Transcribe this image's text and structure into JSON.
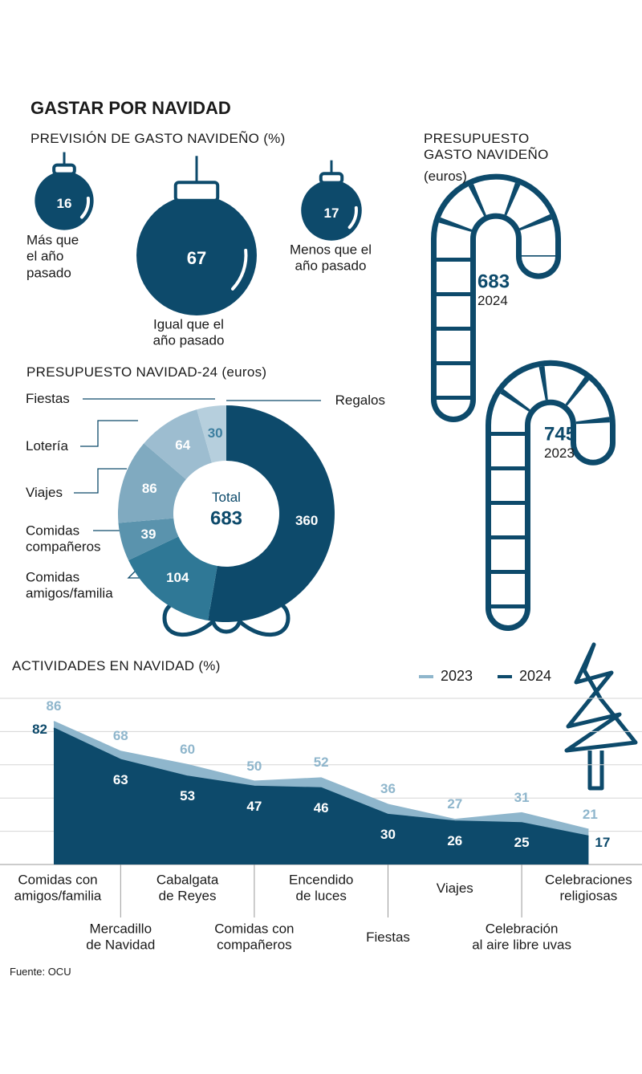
{
  "title": "GASTAR POR NAVIDAD",
  "source": "Fuente: OCU",
  "chart_data": [
    {
      "type": "bubble",
      "title": "PREVISIÓN DE GASTO NAVIDEÑO (%)",
      "categories": [
        "Más que\nel año\npasado",
        "Igual que el\naño pasado",
        "Menos que el\naño pasado"
      ],
      "values": [
        16,
        67,
        17
      ],
      "color": "#0d4a6b"
    },
    {
      "type": "pictogram",
      "title": "PRESUPUESTO\nGASTO NAVIDEÑO",
      "subtitle": "(euros)",
      "categories": [
        "2024",
        "2023"
      ],
      "values": [
        683,
        745
      ],
      "color": "#0d4a6b"
    },
    {
      "type": "pie",
      "title": "PRESUPUESTO NAVIDAD-24 (euros)",
      "categories": [
        "Regalos",
        "Comidas\namigos/familia",
        "Comidas\ncompañeros",
        "Viajes",
        "Lotería",
        "Fiestas"
      ],
      "values": [
        360,
        104,
        39,
        86,
        64,
        30
      ],
      "colors": [
        "#0d4a6b",
        "#2f7896",
        "#5a93ad",
        "#80aac0",
        "#9dbdd0",
        "#b6cfdd"
      ],
      "total_label": "Total",
      "total": 683
    },
    {
      "type": "area",
      "title": "ACTIVIDADES EN NAVIDAD (%)",
      "categories": [
        "Comidas con\namigos/familia",
        "Mercadillo\nde Navidad",
        "Cabalgata\nde Reyes",
        "Comidas con\ncompañeros",
        "Encendido\nde luces",
        "Fiestas",
        "Viajes",
        "Celebración\nal aire libre uvas",
        "Celebraciones\nreligiosas"
      ],
      "series": [
        {
          "name": "2023",
          "color": "#8fb6cc",
          "values": [
            86,
            68,
            60,
            50,
            52,
            36,
            27,
            31,
            21
          ]
        },
        {
          "name": "2024",
          "color": "#0d4a6b",
          "values": [
            82,
            63,
            53,
            47,
            46,
            30,
            26,
            25,
            17
          ]
        }
      ],
      "ylim": [
        0,
        100
      ],
      "yticks": [
        0,
        20,
        40,
        60,
        80,
        100
      ],
      "grid": true
    }
  ]
}
